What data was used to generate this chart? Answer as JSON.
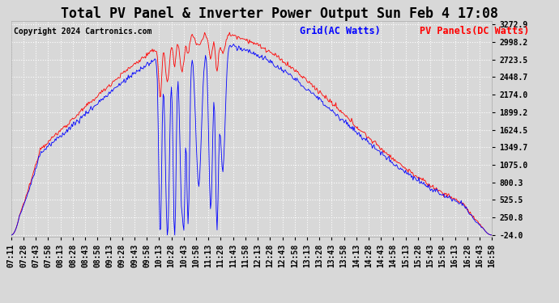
{
  "title": "Total PV Panel & Inverter Power Output Sun Feb 4 17:08",
  "copyright": "Copyright 2024 Cartronics.com",
  "legend_grid": "Grid(AC Watts)",
  "legend_pv": "PV Panels(DC Watts)",
  "yticks": [
    3272.9,
    2998.2,
    2723.5,
    2448.7,
    2174.0,
    1899.2,
    1624.5,
    1349.7,
    1075.0,
    800.3,
    525.5,
    250.8,
    -24.0
  ],
  "ymin": -24.0,
  "ymax": 3272.9,
  "xtick_labels": [
    "07:11",
    "07:28",
    "07:43",
    "07:58",
    "08:13",
    "08:28",
    "08:43",
    "08:58",
    "09:13",
    "09:28",
    "09:43",
    "09:58",
    "10:13",
    "10:28",
    "10:43",
    "10:58",
    "11:13",
    "11:28",
    "11:43",
    "11:58",
    "12:13",
    "12:28",
    "12:43",
    "12:58",
    "13:13",
    "13:28",
    "13:43",
    "13:58",
    "14:13",
    "14:28",
    "14:43",
    "14:58",
    "15:13",
    "15:28",
    "15:43",
    "15:58",
    "16:13",
    "16:28",
    "16:43",
    "16:58"
  ],
  "color_grid": "blue",
  "color_pv": "red",
  "bg_color": "#d8d8d8",
  "grid_color": "white",
  "title_fontsize": 12,
  "copyright_fontsize": 7,
  "legend_fontsize": 8.5,
  "tick_fontsize": 7
}
